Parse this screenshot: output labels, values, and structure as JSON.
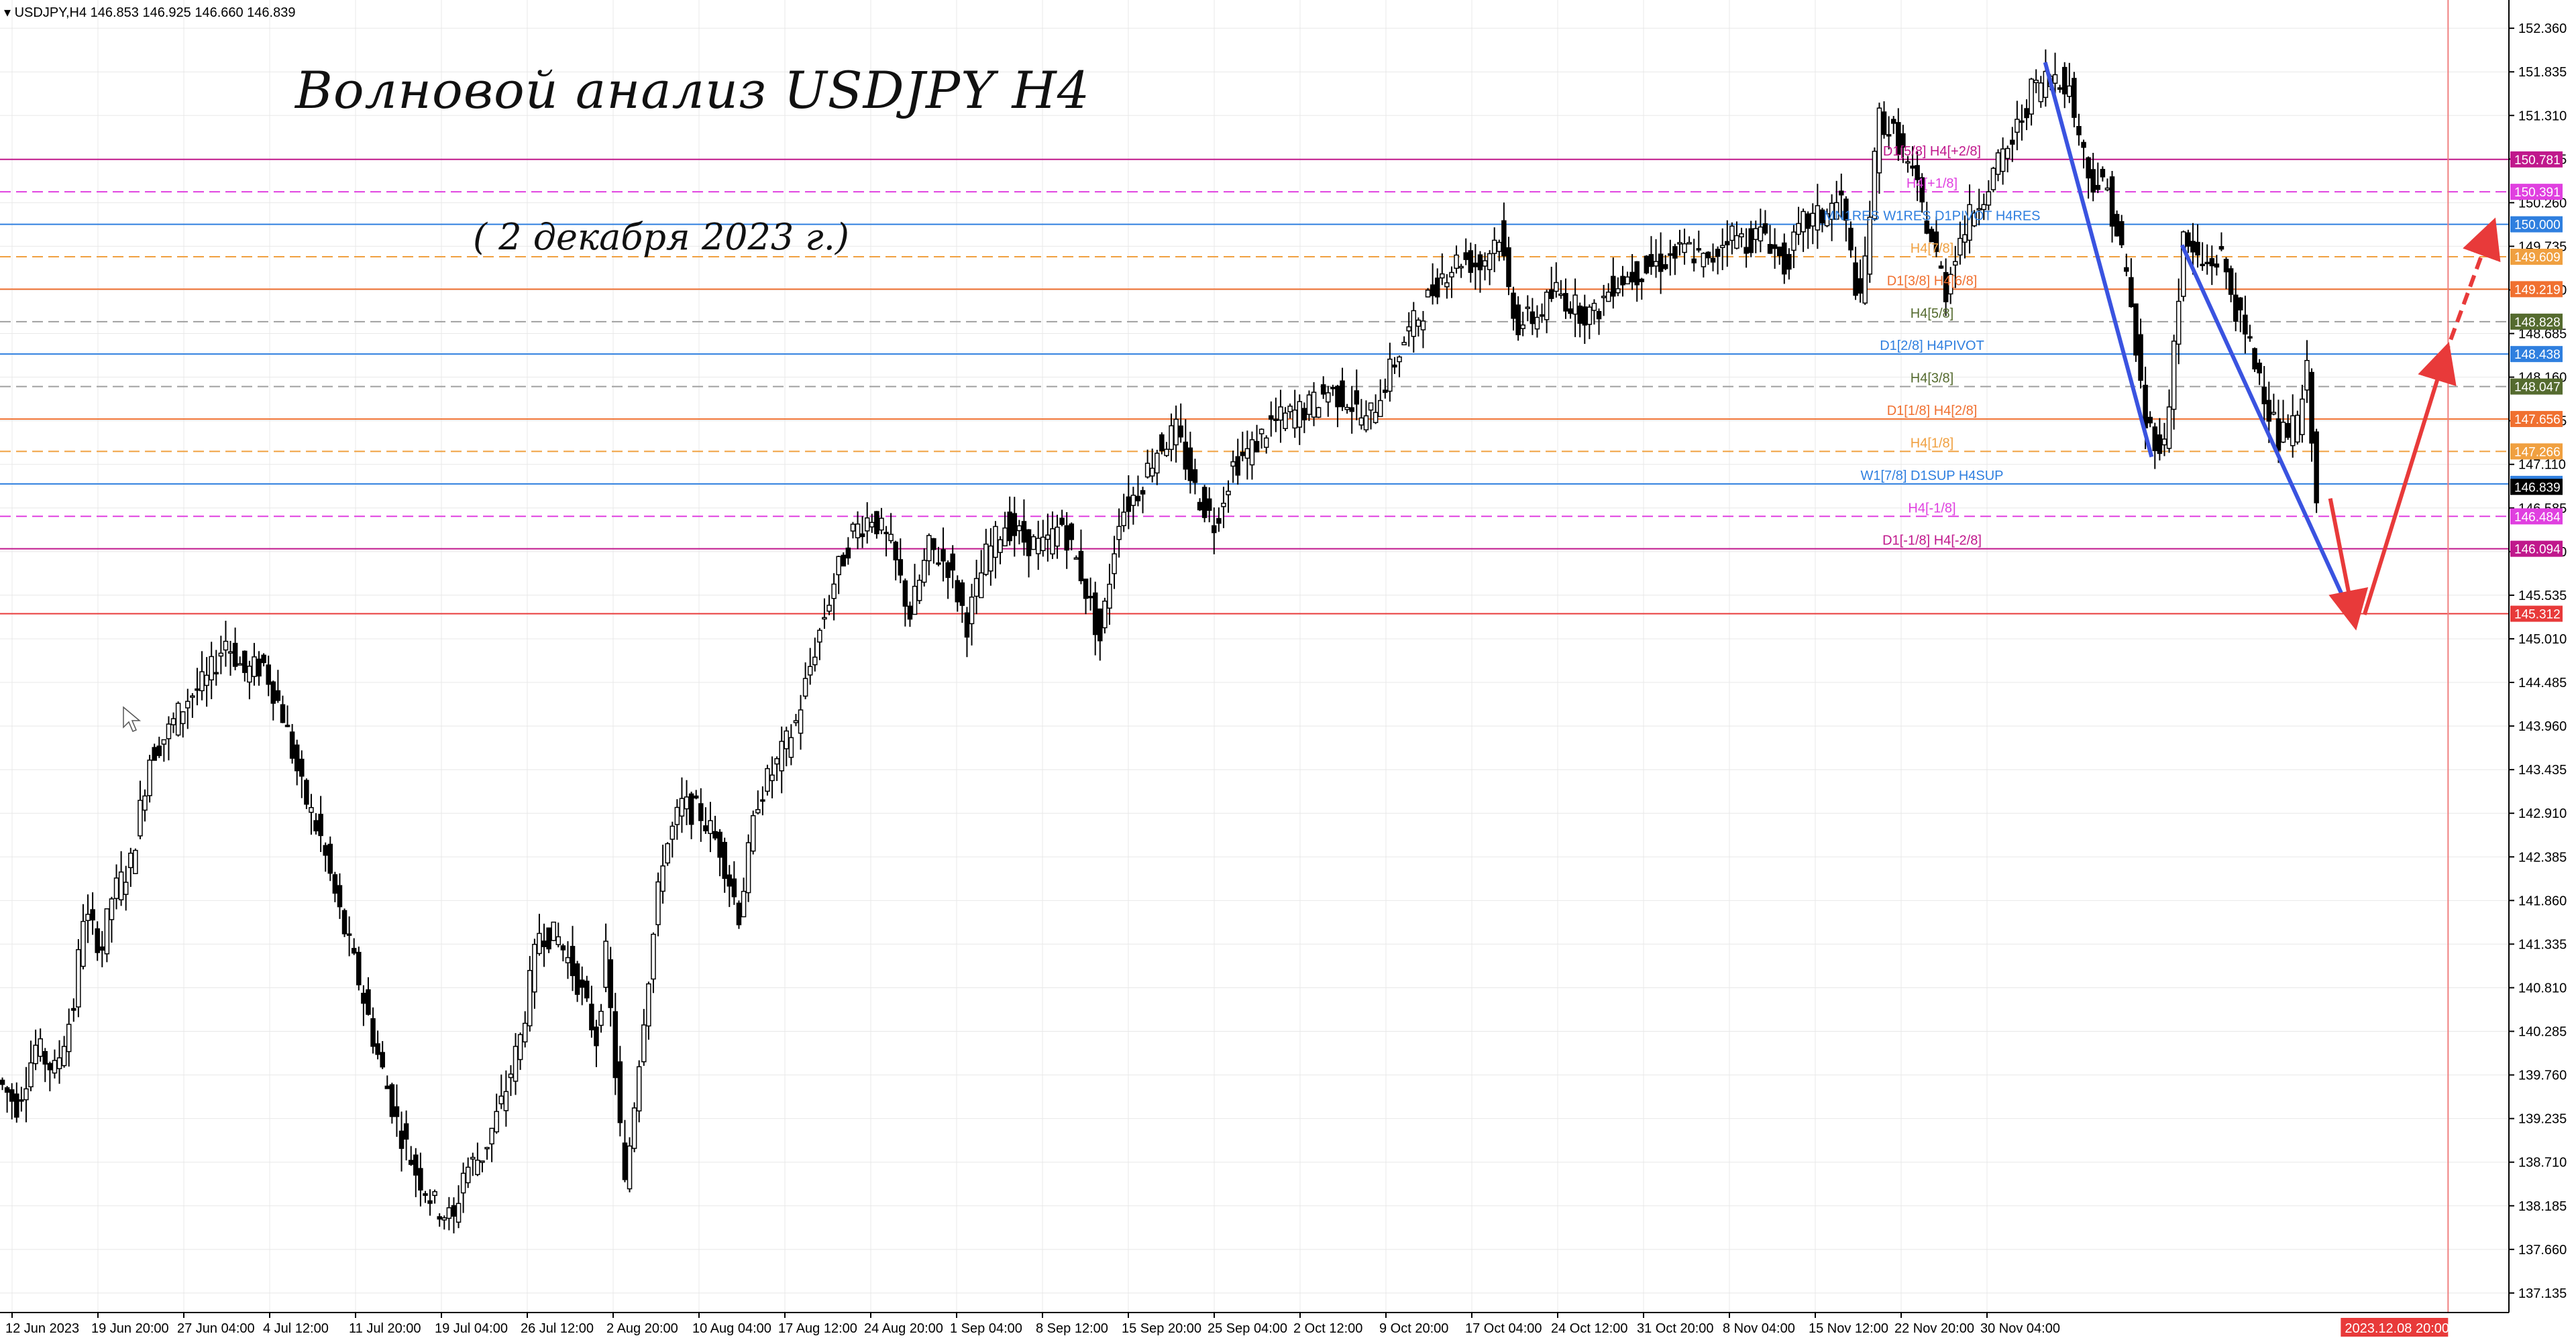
{
  "header": {
    "symbol_label": "USDJPY,H4",
    "ohlc": "146.853 146.925 146.660 146.839"
  },
  "annotations": {
    "title": "Волновой анализ USDJPY H4",
    "subtitle": "( 2 декабря 2023 г.)"
  },
  "colors": {
    "background": "#ffffff",
    "grid": "#e8e8e8",
    "candles": "#000000",
    "wave_line": "#3a53e0",
    "forecast": "#e83a3a",
    "magenta": "#e040e0",
    "purple": "#c0188c",
    "orange": "#f07030",
    "light_orange": "#f0a040",
    "olive": "#556b2f",
    "sky": "#2f7fdf",
    "dashed_gray": "#a0a0a0"
  },
  "chart_data": {
    "type": "candlestick",
    "instrument": "USDJPY",
    "timeframe": "H4",
    "ylim": [
      136.9,
      152.7
    ],
    "y_ticks": [
      "152.360",
      "151.835",
      "151.310",
      "150.785",
      "150.260",
      "149.735",
      "149.210",
      "148.685",
      "148.160",
      "147.635",
      "147.110",
      "146.585",
      "146.060",
      "145.535",
      "145.010",
      "144.485",
      "143.960",
      "143.435",
      "142.910",
      "142.385",
      "141.860",
      "141.335",
      "140.810",
      "140.285",
      "139.760",
      "139.235",
      "138.710",
      "138.185",
      "137.660",
      "137.135"
    ],
    "x_labels": [
      "12 Jun 2023",
      "19 Jun 20:00",
      "27 Jun 04:00",
      "4 Jul 12:00",
      "11 Jul 20:00",
      "19 Jul 04:00",
      "26 Jul 12:00",
      "2 Aug 20:00",
      "10 Aug 04:00",
      "17 Aug 12:00",
      "24 Aug 20:00",
      "1 Sep 04:00",
      "8 Sep 12:00",
      "15 Sep 20:00",
      "25 Sep 04:00",
      "2 Oct 12:00",
      "9 Oct 20:00",
      "17 Oct 04:00",
      "24 Oct 12:00",
      "31 Oct 20:00",
      "8 Nov 04:00",
      "15 Nov 12:00",
      "22 Nov 20:00",
      "30 Nov 04:00"
    ],
    "cursor_time_label": "2023.12.08 20:00",
    "price_path": [
      [
        0,
        139.7
      ],
      [
        10,
        139.4
      ],
      [
        20,
        140.1
      ],
      [
        30,
        139.8
      ],
      [
        40,
        140.6
      ],
      [
        45,
        141.7
      ],
      [
        55,
        141.3
      ],
      [
        60,
        141.9
      ],
      [
        70,
        142.3
      ],
      [
        80,
        143.6
      ],
      [
        90,
        143.9
      ],
      [
        100,
        144.3
      ],
      [
        110,
        144.5
      ],
      [
        120,
        145.0
      ],
      [
        130,
        144.6
      ],
      [
        140,
        144.7
      ],
      [
        150,
        144.1
      ],
      [
        160,
        143.2
      ],
      [
        170,
        142.6
      ],
      [
        180,
        141.7
      ],
      [
        190,
        140.9
      ],
      [
        200,
        140.0
      ],
      [
        210,
        139.2
      ],
      [
        220,
        138.6
      ],
      [
        230,
        138.2
      ],
      [
        240,
        138.0
      ],
      [
        245,
        138.6
      ],
      [
        255,
        138.8
      ],
      [
        265,
        139.4
      ],
      [
        275,
        140.2
      ],
      [
        285,
        141.5
      ],
      [
        295,
        141.4
      ],
      [
        305,
        140.9
      ],
      [
        315,
        140.2
      ],
      [
        320,
        141.2
      ],
      [
        325,
        139.8
      ],
      [
        330,
        138.4
      ],
      [
        340,
        140.5
      ],
      [
        350,
        142.4
      ],
      [
        360,
        143.0
      ],
      [
        370,
        142.9
      ],
      [
        380,
        142.5
      ],
      [
        390,
        141.7
      ],
      [
        400,
        143.1
      ],
      [
        410,
        143.5
      ],
      [
        420,
        144.0
      ],
      [
        430,
        144.9
      ],
      [
        440,
        145.7
      ],
      [
        450,
        146.3
      ],
      [
        460,
        146.5
      ],
      [
        470,
        146.1
      ],
      [
        480,
        145.3
      ],
      [
        490,
        146.1
      ],
      [
        500,
        145.9
      ],
      [
        510,
        145.2
      ],
      [
        520,
        146.0
      ],
      [
        530,
        146.4
      ],
      [
        540,
        146.2
      ],
      [
        550,
        146.1
      ],
      [
        560,
        146.4
      ],
      [
        570,
        145.8
      ],
      [
        580,
        145.0
      ],
      [
        590,
        146.5
      ],
      [
        600,
        146.8
      ],
      [
        610,
        147.3
      ],
      [
        620,
        147.5
      ],
      [
        630,
        146.8
      ],
      [
        640,
        146.4
      ],
      [
        650,
        147.1
      ],
      [
        660,
        147.3
      ],
      [
        670,
        147.6
      ],
      [
        680,
        147.7
      ],
      [
        690,
        147.8
      ],
      [
        700,
        148.0
      ],
      [
        710,
        147.9
      ],
      [
        720,
        147.6
      ],
      [
        730,
        148.1
      ],
      [
        740,
        148.6
      ],
      [
        750,
        149.0
      ],
      [
        760,
        149.4
      ],
      [
        770,
        149.6
      ],
      [
        780,
        149.5
      ],
      [
        790,
        149.9
      ],
      [
        795,
        149.2
      ],
      [
        800,
        148.8
      ],
      [
        810,
        148.9
      ],
      [
        820,
        149.2
      ],
      [
        830,
        149.0
      ],
      [
        840,
        148.9
      ],
      [
        850,
        149.3
      ],
      [
        860,
        149.4
      ],
      [
        870,
        149.5
      ],
      [
        880,
        149.6
      ],
      [
        890,
        149.7
      ],
      [
        900,
        149.5
      ],
      [
        910,
        149.9
      ],
      [
        920,
        149.8
      ],
      [
        930,
        149.9
      ],
      [
        940,
        149.5
      ],
      [
        950,
        150.0
      ],
      [
        960,
        150.1
      ],
      [
        970,
        150.3
      ],
      [
        975,
        149.6
      ],
      [
        980,
        149.0
      ],
      [
        990,
        151.3
      ],
      [
        1000,
        151.0
      ],
      [
        1010,
        150.4
      ],
      [
        1020,
        149.6
      ],
      [
        1025,
        149.2
      ],
      [
        1030,
        149.7
      ],
      [
        1040,
        150.2
      ],
      [
        1050,
        150.6
      ],
      [
        1060,
        151.0
      ],
      [
        1070,
        151.6
      ],
      [
        1080,
        151.8
      ],
      [
        1085,
        151.8
      ],
      [
        1090,
        151.6
      ],
      [
        1100,
        150.6
      ],
      [
        1110,
        150.4
      ],
      [
        1120,
        149.4
      ],
      [
        1130,
        147.6
      ],
      [
        1140,
        147.3
      ],
      [
        1150,
        149.8
      ],
      [
        1160,
        149.5
      ],
      [
        1170,
        149.6
      ],
      [
        1180,
        148.8
      ],
      [
        1190,
        148.2
      ],
      [
        1200,
        147.4
      ],
      [
        1210,
        147.6
      ],
      [
        1215,
        148.2
      ],
      [
        1220,
        146.8
      ]
    ],
    "levels": [
      {
        "price": 150.781,
        "label": "D1[5/8] H4[+2/8]",
        "color": "#c0188c",
        "style": "solid",
        "tag_color": "#c0188c"
      },
      {
        "price": 150.391,
        "label": "H4[+1/8]",
        "color": "#e040e0",
        "style": "dashed",
        "tag_color": "#e040e0"
      },
      {
        "price": 150.0,
        "label": "MN1RES W1RES D1PIVOT H4RES",
        "color": "#2f7fdf",
        "style": "solid",
        "tag_color": "#2f7fdf"
      },
      {
        "price": 149.609,
        "label": "H4[7/8]",
        "color": "#f0a040",
        "style": "dashed",
        "tag_color": "#f0a040"
      },
      {
        "price": 149.219,
        "label": "D1[3/8] H4[6/8]",
        "color": "#f07030",
        "style": "solid",
        "tag_color": "#f07030"
      },
      {
        "price": 148.828,
        "label": "H4[5/8]",
        "color": "#a0a0a0",
        "style": "dashed",
        "tag_color": "#556b2f"
      },
      {
        "price": 148.438,
        "label": "D1[2/8] H4PIVOT",
        "color": "#2f7fdf",
        "style": "solid",
        "tag_color": "#2f7fdf"
      },
      {
        "price": 148.047,
        "label": "H4[3/8]",
        "color": "#a0a0a0",
        "style": "dashed",
        "tag_color": "#556b2f"
      },
      {
        "price": 147.656,
        "label": "D1[1/8] H4[2/8]",
        "color": "#f07030",
        "style": "solid",
        "tag_color": "#f07030"
      },
      {
        "price": 147.266,
        "label": "H4[1/8]",
        "color": "#f0a040",
        "style": "dashed",
        "tag_color": "#f0a040"
      },
      {
        "price": 146.875,
        "label": "W1[7/8] D1SUP H4SUP",
        "color": "#2f7fdf",
        "style": "solid",
        "tag_color": "#2f7fdf"
      },
      {
        "price": 146.484,
        "label": "H4[-1/8]",
        "color": "#e040e0",
        "style": "dashed",
        "tag_color": "#e040e0"
      },
      {
        "price": 146.094,
        "label": "D1[-1/8] H4[-2/8]",
        "color": "#c0188c",
        "style": "solid",
        "tag_color": "#c0188c"
      },
      {
        "price": 145.312,
        "label": "",
        "color": "#e83a3a",
        "style": "solid",
        "tag_color": "#e83a3a"
      }
    ],
    "wave_lines": [
      {
        "from": [
          1076,
          151.95
        ],
        "to": [
          1132,
          147.2
        ]
      },
      {
        "from": [
          1148,
          149.75
        ],
        "to": [
          1238,
          145.25
        ]
      }
    ],
    "forecast_arrows": [
      {
        "from": [
          1226,
          146.7
        ],
        "to": [
          1238,
          145.3
        ],
        "style": "solid"
      },
      {
        "from": [
          1244,
          145.3
        ],
        "to": [
          1286,
          148.4
        ],
        "style": "solid"
      },
      {
        "from": [
          1286,
          148.4
        ],
        "to": [
          1310,
          149.9
        ],
        "style": "dashed"
      }
    ],
    "current_price": 146.839
  }
}
